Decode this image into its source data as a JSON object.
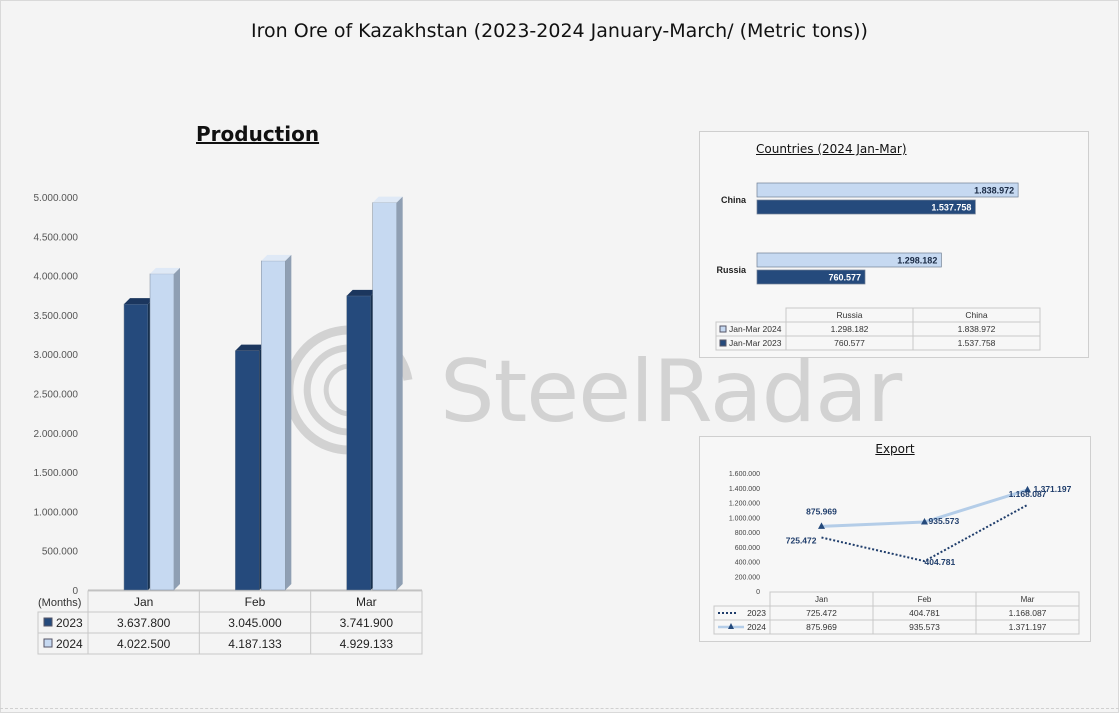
{
  "title": "Iron Ore of Kazakhstan (2023-2024 January-March/ (Metric tons))",
  "watermark": "SteelRadar",
  "colors": {
    "dark_blue": "#254a7c",
    "light_blue": "#c6d9f1",
    "dotted_line": "#1f3d6b",
    "light_line": "#b4cde8"
  },
  "chart_data": [
    {
      "type": "bar",
      "title": "Production",
      "categories": [
        "Jan",
        "Feb",
        "Mar"
      ],
      "series": [
        {
          "name": "2023",
          "values": [
            3637800,
            3045000,
            3741900
          ],
          "labels": [
            "3.637.800",
            "3.045.000",
            "3.741.900"
          ]
        },
        {
          "name": "2024",
          "values": [
            4022500,
            4187133,
            4929133
          ],
          "labels": [
            "4.022.500",
            "4.187.133",
            "4.929.133"
          ]
        }
      ],
      "ylim": [
        0,
        5000000
      ],
      "yticks": [
        0,
        500000,
        1000000,
        1500000,
        2000000,
        2500000,
        3000000,
        3500000,
        4000000,
        4500000,
        5000000
      ],
      "ytick_labels": [
        "0",
        "500.000",
        "1.000.000",
        "1.500.000",
        "2.000.000",
        "2.500.000",
        "3.000.000",
        "3.500.000",
        "4.000.000",
        "4.500.000",
        "5.000.000"
      ],
      "table_header": "(Months)",
      "style": "3d-clustered-column"
    },
    {
      "type": "bar",
      "orientation": "horizontal",
      "title": "Countries (2024 Jan-Mar)",
      "categories": [
        "China",
        "Russia"
      ],
      "series": [
        {
          "name": "Jan-Mar 2024",
          "values": [
            1838972,
            1298182
          ],
          "labels": [
            "1.838.972",
            "1.298.182"
          ]
        },
        {
          "name": "Jan-Mar 2023",
          "values": [
            1537758,
            760577
          ],
          "labels": [
            "1.537.758",
            "760.577"
          ]
        }
      ],
      "table_columns": [
        "Russia",
        "China"
      ],
      "table_rows": [
        {
          "name": "Jan-Mar 2024",
          "values": [
            "1.298.182",
            "1.838.972"
          ]
        },
        {
          "name": "Jan-Mar 2023",
          "values": [
            "760.577",
            "1.537.758"
          ]
        }
      ]
    },
    {
      "type": "line",
      "title": "Export",
      "categories": [
        "Jan",
        "Feb",
        "Mar"
      ],
      "series": [
        {
          "name": "2023",
          "values": [
            725472,
            404781,
            1168087
          ],
          "labels": [
            "725.472",
            "404.781",
            "1.168.087"
          ],
          "style": "dotted"
        },
        {
          "name": "2024",
          "values": [
            875969,
            935573,
            1371197
          ],
          "labels": [
            "875.969",
            "935.573",
            "1.371.197"
          ],
          "style": "solid-triangle-markers"
        }
      ],
      "ylim": [
        0,
        1600000
      ],
      "yticks": [
        0,
        200000,
        400000,
        600000,
        800000,
        1000000,
        1200000,
        1400000,
        1600000
      ],
      "ytick_labels": [
        "0",
        "200.000",
        "400.000",
        "600.000",
        "800.000",
        "1.000.000",
        "1.200.000",
        "1.400.000",
        "1.600.000"
      ]
    }
  ]
}
